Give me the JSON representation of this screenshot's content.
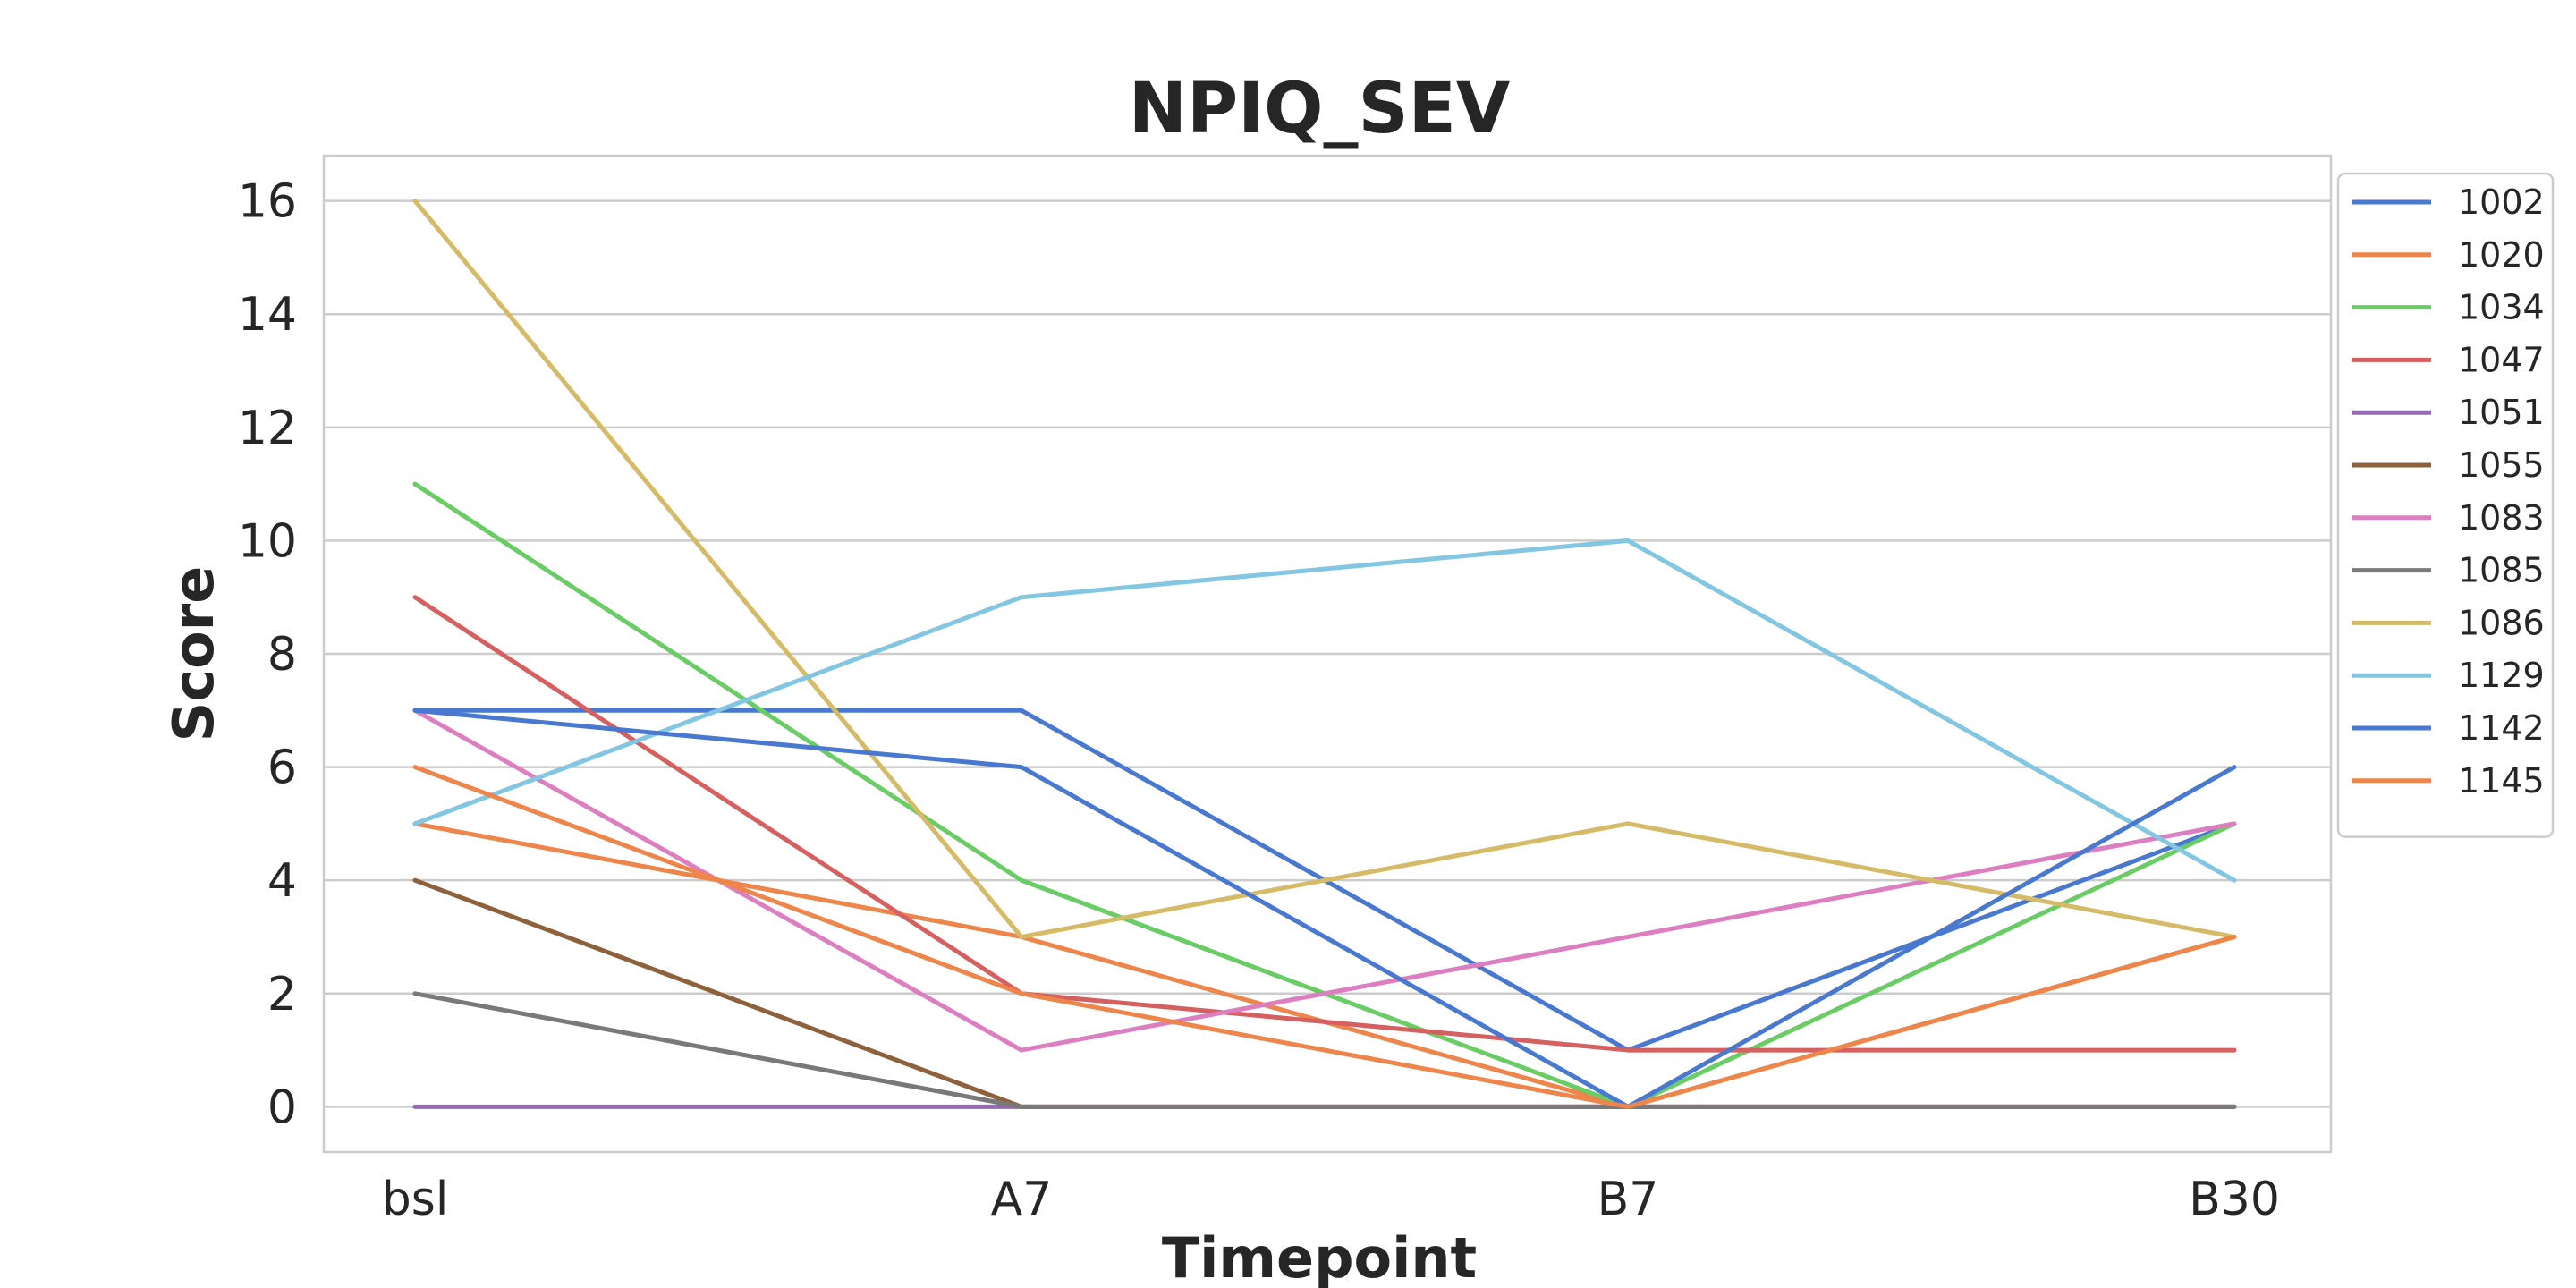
{
  "chart_data": {
    "type": "line",
    "title": "NPIQ_SEV",
    "xlabel": "Timepoint",
    "ylabel": "Score",
    "categories": [
      "bsl",
      "A7",
      "B7",
      "B30"
    ],
    "ylim": [
      -0.8,
      16.8
    ],
    "yticks": [
      0,
      2,
      4,
      6,
      8,
      10,
      12,
      14,
      16
    ],
    "grid": true,
    "legend_position": "right, outside plot",
    "series": [
      {
        "name": "1002",
        "color": "#4878d0",
        "values": [
          7,
          7,
          1,
          5
        ]
      },
      {
        "name": "1020",
        "color": "#ee854a",
        "values": [
          5,
          3,
          0,
          3
        ]
      },
      {
        "name": "1034",
        "color": "#6acc64",
        "values": [
          11,
          4,
          0,
          5
        ]
      },
      {
        "name": "1047",
        "color": "#d65f5f",
        "values": [
          9,
          2,
          1,
          1
        ]
      },
      {
        "name": "1051",
        "color": "#956cb4",
        "values": [
          0,
          0,
          0,
          0
        ]
      },
      {
        "name": "1055",
        "color": "#8c613c",
        "values": [
          4,
          0,
          0,
          0
        ]
      },
      {
        "name": "1083",
        "color": "#dc7ec0",
        "values": [
          7,
          1,
          3,
          5
        ]
      },
      {
        "name": "1085",
        "color": "#797979",
        "values": [
          2,
          0,
          0,
          0
        ]
      },
      {
        "name": "1086",
        "color": "#d5bb67",
        "values": [
          16,
          3,
          5,
          3
        ]
      },
      {
        "name": "1129",
        "color": "#82c6e2",
        "values": [
          5,
          9,
          10,
          4
        ]
      },
      {
        "name": "1142",
        "color": "#4878d0",
        "values": [
          7,
          6,
          0,
          6
        ]
      },
      {
        "name": "1145",
        "color": "#ee854a",
        "values": [
          6,
          2,
          0,
          3
        ]
      }
    ]
  }
}
